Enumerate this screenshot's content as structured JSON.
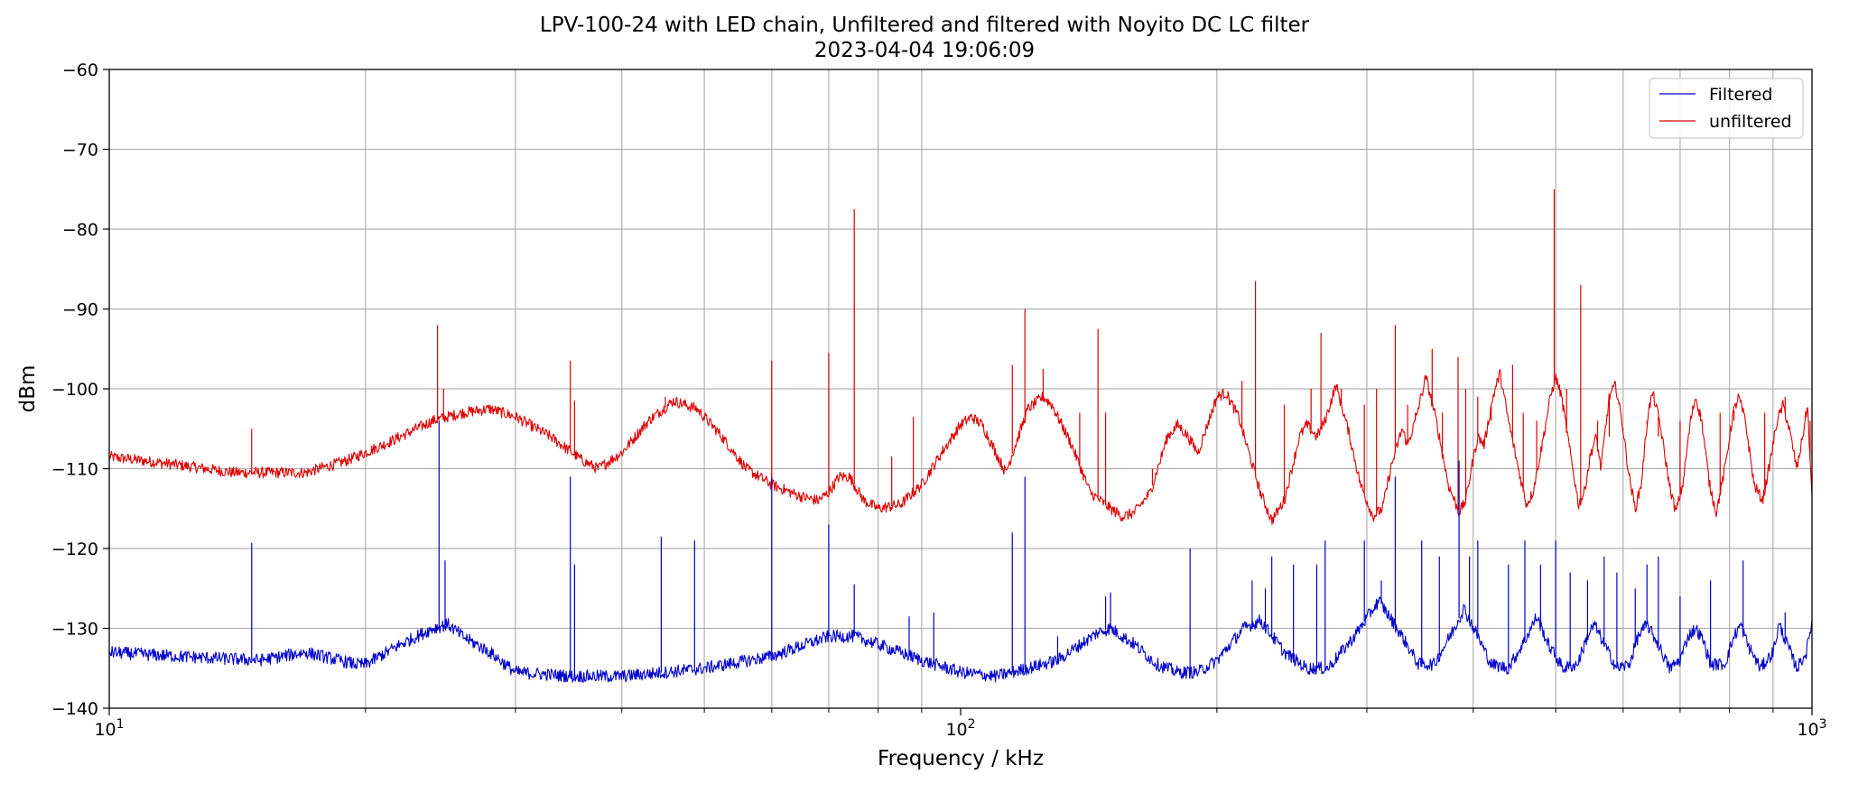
{
  "chart_data": {
    "type": "line",
    "title": "LPV-100-24 with LED chain, Unfiltered and filtered with Noyito DC LC filter",
    "subtitle": "2023-04-04 19:06:09",
    "xlabel": "Frequency / kHz",
    "ylabel": "dBm",
    "xscale": "log",
    "xlim": [
      10,
      1000
    ],
    "ylim": [
      -140,
      -60
    ],
    "grid": true,
    "legend_position": "top-right",
    "x_ticks": [
      {
        "value": 10,
        "base": "10",
        "exp": "1"
      },
      {
        "value": 100,
        "base": "10",
        "exp": "2"
      },
      {
        "value": 1000,
        "base": "10",
        "exp": "3"
      }
    ],
    "y_ticks": [
      "−60",
      "−70",
      "−80",
      "−90",
      "−100",
      "−110",
      "−120",
      "−130",
      "−140"
    ],
    "y_tick_values": [
      -60,
      -70,
      -80,
      -90,
      -100,
      -110,
      -120,
      -130,
      -140
    ],
    "series": [
      {
        "name": "Filtered",
        "color": "#0000cc",
        "noise": 0.8,
        "values": [
          [
            10,
            -133
          ],
          [
            12,
            -133.5
          ],
          [
            15,
            -134
          ],
          [
            17,
            -133
          ],
          [
            19.5,
            -134.5
          ],
          [
            20,
            -134.5
          ],
          [
            22,
            -132
          ],
          [
            24,
            -130
          ],
          [
            25,
            -129.5
          ],
          [
            26,
            -131
          ],
          [
            28,
            -133
          ],
          [
            30,
            -135.5
          ],
          [
            35,
            -136
          ],
          [
            40,
            -136
          ],
          [
            45,
            -135.5
          ],
          [
            50,
            -135
          ],
          [
            60,
            -133.5
          ],
          [
            70,
            -131
          ],
          [
            75,
            -131
          ],
          [
            80,
            -132
          ],
          [
            90,
            -134
          ],
          [
            100,
            -135.5
          ],
          [
            110,
            -136
          ],
          [
            120,
            -135
          ],
          [
            130,
            -134
          ],
          [
            145,
            -130.5
          ],
          [
            150,
            -130
          ],
          [
            160,
            -132
          ],
          [
            170,
            -134.5
          ],
          [
            180,
            -135.5
          ],
          [
            190,
            -135.5
          ],
          [
            200,
            -134
          ],
          [
            215,
            -130
          ],
          [
            225,
            -129
          ],
          [
            240,
            -133
          ],
          [
            255,
            -135
          ],
          [
            270,
            -135
          ],
          [
            290,
            -131
          ],
          [
            310,
            -126.5
          ],
          [
            330,
            -131
          ],
          [
            345,
            -134.5
          ],
          [
            360,
            -134.5
          ],
          [
            380,
            -130
          ],
          [
            390,
            -127.5
          ],
          [
            405,
            -131
          ],
          [
            420,
            -134.5
          ],
          [
            440,
            -135
          ],
          [
            460,
            -131.5
          ],
          [
            475,
            -128.5
          ],
          [
            490,
            -132
          ],
          [
            510,
            -135
          ],
          [
            530,
            -134.5
          ],
          [
            545,
            -131
          ],
          [
            555,
            -129.5
          ],
          [
            570,
            -132
          ],
          [
            590,
            -135
          ],
          [
            610,
            -134.5
          ],
          [
            625,
            -131
          ],
          [
            640,
            -129.5
          ],
          [
            660,
            -132
          ],
          [
            680,
            -135
          ],
          [
            700,
            -134
          ],
          [
            715,
            -131
          ],
          [
            730,
            -130
          ],
          [
            745,
            -131.5
          ],
          [
            760,
            -134.5
          ],
          [
            790,
            -134.5
          ],
          [
            810,
            -131
          ],
          [
            825,
            -129.5
          ],
          [
            840,
            -132
          ],
          [
            870,
            -135
          ],
          [
            900,
            -133
          ],
          [
            915,
            -129.5
          ],
          [
            935,
            -132
          ],
          [
            960,
            -135
          ],
          [
            985,
            -133
          ],
          [
            1000,
            -129
          ]
        ],
        "spikes": [
          [
            14.7,
            -119.3
          ],
          [
            24.4,
            -104
          ],
          [
            24.8,
            -121.5
          ],
          [
            34.8,
            -111
          ],
          [
            35.2,
            -122
          ],
          [
            44.5,
            -118.5
          ],
          [
            48.7,
            -119
          ],
          [
            60,
            -111
          ],
          [
            70,
            -117
          ],
          [
            75,
            -124.5
          ],
          [
            87,
            -128.5
          ],
          [
            93,
            -128
          ],
          [
            115,
            -118
          ],
          [
            119,
            -111
          ],
          [
            130,
            -131
          ],
          [
            148,
            -126
          ],
          [
            150,
            -125.5
          ],
          [
            186,
            -120
          ],
          [
            220,
            -124
          ],
          [
            228,
            -125
          ],
          [
            232,
            -121
          ],
          [
            246,
            -122
          ],
          [
            262,
            -122
          ],
          [
            268,
            -119
          ],
          [
            298,
            -119
          ],
          [
            312,
            -124
          ],
          [
            324,
            -111
          ],
          [
            348,
            -119
          ],
          [
            365,
            -121
          ],
          [
            385,
            -109
          ],
          [
            396,
            -121
          ],
          [
            405,
            -119
          ],
          [
            440,
            -122
          ],
          [
            460,
            -119
          ],
          [
            480,
            -122
          ],
          [
            500,
            -119
          ],
          [
            520,
            -123
          ],
          [
            545,
            -124
          ],
          [
            570,
            -121
          ],
          [
            590,
            -123
          ],
          [
            620,
            -125
          ],
          [
            640,
            -122
          ],
          [
            660,
            -121
          ],
          [
            700,
            -126
          ],
          [
            760,
            -124
          ],
          [
            830,
            -121.5
          ],
          [
            930,
            -128
          ]
        ]
      },
      {
        "name": "unfiltered",
        "color": "#dd0000",
        "noise": 0.7,
        "values": [
          [
            10,
            -108.5
          ],
          [
            12,
            -109.5
          ],
          [
            14,
            -110.5
          ],
          [
            17,
            -110.5
          ],
          [
            19,
            -109
          ],
          [
            21,
            -107
          ],
          [
            24,
            -104
          ],
          [
            26,
            -103
          ],
          [
            28,
            -102.5
          ],
          [
            30,
            -103.5
          ],
          [
            33,
            -106
          ],
          [
            36,
            -109
          ],
          [
            37.5,
            -110
          ],
          [
            40,
            -108
          ],
          [
            43,
            -104
          ],
          [
            46,
            -101.5
          ],
          [
            49,
            -102.5
          ],
          [
            52,
            -105.5
          ],
          [
            56,
            -110
          ],
          [
            60,
            -112
          ],
          [
            65,
            -113.5
          ],
          [
            68,
            -114
          ],
          [
            70,
            -113
          ],
          [
            72,
            -111
          ],
          [
            74,
            -111
          ],
          [
            75,
            -112
          ],
          [
            77,
            -114
          ],
          [
            80,
            -115
          ],
          [
            85,
            -114.5
          ],
          [
            90,
            -112
          ],
          [
            95,
            -108
          ],
          [
            100,
            -104.5
          ],
          [
            103,
            -103.5
          ],
          [
            106,
            -104.5
          ],
          [
            110,
            -108
          ],
          [
            113,
            -110.5
          ],
          [
            116,
            -107
          ],
          [
            120,
            -102.5
          ],
          [
            125,
            -101
          ],
          [
            128,
            -102
          ],
          [
            135,
            -107
          ],
          [
            142,
            -113
          ],
          [
            150,
            -115
          ],
          [
            155,
            -116
          ],
          [
            160,
            -115.5
          ],
          [
            167,
            -113
          ],
          [
            175,
            -106
          ],
          [
            180,
            -104.5
          ],
          [
            185,
            -106
          ],
          [
            190,
            -108
          ],
          [
            200,
            -101
          ],
          [
            205,
            -100.5
          ],
          [
            212,
            -103.5
          ],
          [
            225,
            -113
          ],
          [
            232,
            -116.5
          ],
          [
            240,
            -114
          ],
          [
            250,
            -106
          ],
          [
            255,
            -104.5
          ],
          [
            262,
            -106
          ],
          [
            268,
            -104
          ],
          [
            276,
            -99.5
          ],
          [
            285,
            -105
          ],
          [
            295,
            -112
          ],
          [
            305,
            -116
          ],
          [
            313,
            -115
          ],
          [
            320,
            -110
          ],
          [
            330,
            -105
          ],
          [
            335,
            -107
          ],
          [
            342,
            -104
          ],
          [
            352,
            -98.5
          ],
          [
            362,
            -104
          ],
          [
            374,
            -112
          ],
          [
            385,
            -115.5
          ],
          [
            392,
            -114
          ],
          [
            398,
            -110
          ],
          [
            405,
            -106
          ],
          [
            412,
            -107
          ],
          [
            422,
            -101
          ],
          [
            430,
            -98
          ],
          [
            440,
            -104
          ],
          [
            452,
            -110
          ],
          [
            462,
            -114.5
          ],
          [
            470,
            -113
          ],
          [
            480,
            -108
          ],
          [
            493,
            -101
          ],
          [
            500,
            -98.5
          ],
          [
            508,
            -101
          ],
          [
            520,
            -108
          ],
          [
            532,
            -114.5
          ],
          [
            540,
            -113
          ],
          [
            550,
            -108
          ],
          [
            558,
            -106
          ],
          [
            565,
            -110
          ],
          [
            578,
            -101
          ],
          [
            588,
            -99.5
          ],
          [
            598,
            -104
          ],
          [
            610,
            -111
          ],
          [
            620,
            -115
          ],
          [
            630,
            -112
          ],
          [
            642,
            -103
          ],
          [
            650,
            -100.5
          ],
          [
            662,
            -104
          ],
          [
            680,
            -112
          ],
          [
            692,
            -115.5
          ],
          [
            705,
            -112
          ],
          [
            720,
            -104
          ],
          [
            730,
            -101
          ],
          [
            742,
            -104
          ],
          [
            758,
            -112
          ],
          [
            772,
            -115.5
          ],
          [
            790,
            -110
          ],
          [
            808,
            -103
          ],
          [
            820,
            -101
          ],
          [
            835,
            -104
          ],
          [
            855,
            -112
          ],
          [
            875,
            -114
          ],
          [
            890,
            -110
          ],
          [
            910,
            -104
          ],
          [
            925,
            -102
          ],
          [
            940,
            -105
          ],
          [
            960,
            -110
          ],
          [
            975,
            -106
          ],
          [
            988,
            -102
          ],
          [
            1000,
            -114
          ]
        ],
        "spikes": [
          [
            14.7,
            -105
          ],
          [
            24.3,
            -92
          ],
          [
            24.7,
            -100
          ],
          [
            34.8,
            -96.5
          ],
          [
            35.2,
            -101.5
          ],
          [
            45,
            -101
          ],
          [
            60,
            -96.5
          ],
          [
            70,
            -95.5
          ],
          [
            75,
            -77.5
          ],
          [
            83,
            -108.5
          ],
          [
            88,
            -103.5
          ],
          [
            115,
            -97
          ],
          [
            119,
            -90
          ],
          [
            125,
            -97.5
          ],
          [
            138,
            -103
          ],
          [
            145,
            -92.5
          ],
          [
            148,
            -103
          ],
          [
            168,
            -110
          ],
          [
            214,
            -99
          ],
          [
            222,
            -86.5
          ],
          [
            240,
            -102
          ],
          [
            258,
            -100
          ],
          [
            265,
            -93
          ],
          [
            280,
            -100
          ],
          [
            298,
            -102
          ],
          [
            308,
            -100
          ],
          [
            324,
            -92
          ],
          [
            335,
            -102
          ],
          [
            342,
            -103
          ],
          [
            358,
            -95
          ],
          [
            368,
            -103
          ],
          [
            384,
            -96
          ],
          [
            392,
            -100
          ],
          [
            405,
            -101
          ],
          [
            420,
            -104
          ],
          [
            445,
            -97
          ],
          [
            458,
            -103
          ],
          [
            475,
            -104
          ],
          [
            498,
            -75
          ],
          [
            515,
            -100
          ],
          [
            535,
            -87
          ],
          [
            560,
            -104
          ],
          [
            578,
            -106
          ],
          [
            600,
            -105
          ],
          [
            640,
            -104
          ],
          [
            660,
            -106
          ],
          [
            700,
            -104
          ],
          [
            740,
            -103
          ],
          [
            780,
            -103
          ],
          [
            810,
            -104
          ],
          [
            880,
            -103
          ],
          [
            930,
            -101
          ],
          [
            995,
            -104
          ]
        ]
      }
    ]
  }
}
